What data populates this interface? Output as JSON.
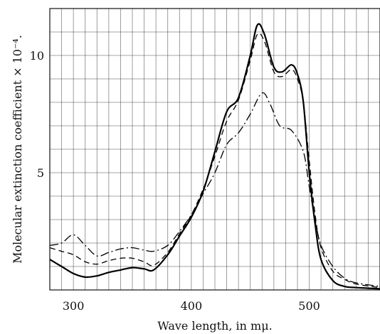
{
  "chart_data": {
    "type": "line",
    "xlabel": "Wave length, in mμ.",
    "ylabel": "Molecular extinction coefficient × 10⁻⁴.",
    "xlim": [
      280,
      560
    ],
    "ylim": [
      0,
      12
    ],
    "grid": true,
    "x_ticks": [
      {
        "value": 300,
        "label": "300"
      },
      {
        "value": 400,
        "label": "400"
      },
      {
        "value": 500,
        "label": "500"
      }
    ],
    "y_ticks": [
      {
        "value": 5,
        "label": "5"
      },
      {
        "value": 10,
        "label": "10"
      }
    ],
    "x_grid": [
      290,
      300,
      310,
      320,
      330,
      340,
      350,
      360,
      370,
      380,
      390,
      400,
      410,
      420,
      430,
      440,
      450,
      460,
      470,
      480,
      490,
      500,
      510,
      520,
      530,
      540,
      550
    ],
    "y_grid": [
      1,
      2,
      3,
      4,
      5,
      6,
      7,
      8,
      9,
      10,
      11
    ],
    "series": [
      {
        "style": "solid",
        "color": "#000000",
        "points": [
          [
            280,
            1.3
          ],
          [
            290,
            1.0
          ],
          [
            300,
            0.7
          ],
          [
            310,
            0.55
          ],
          [
            320,
            0.6
          ],
          [
            330,
            0.75
          ],
          [
            340,
            0.85
          ],
          [
            350,
            0.95
          ],
          [
            360,
            0.9
          ],
          [
            368,
            0.85
          ],
          [
            380,
            1.5
          ],
          [
            390,
            2.3
          ],
          [
            400,
            3.1
          ],
          [
            410,
            4.2
          ],
          [
            420,
            5.9
          ],
          [
            430,
            7.6
          ],
          [
            440,
            8.2
          ],
          [
            450,
            10.0
          ],
          [
            456,
            11.3
          ],
          [
            462,
            10.9
          ],
          [
            470,
            9.5
          ],
          [
            477,
            9.3
          ],
          [
            485,
            9.6
          ],
          [
            490,
            9.2
          ],
          [
            495,
            8.0
          ],
          [
            500,
            5.0
          ],
          [
            505,
            2.8
          ],
          [
            510,
            1.3
          ],
          [
            520,
            0.4
          ],
          [
            530,
            0.15
          ],
          [
            540,
            0.1
          ],
          [
            560,
            0.05
          ]
        ]
      },
      {
        "style": "dashed",
        "color": "#000000",
        "points": [
          [
            280,
            1.8
          ],
          [
            290,
            1.65
          ],
          [
            300,
            1.5
          ],
          [
            310,
            1.2
          ],
          [
            320,
            1.1
          ],
          [
            330,
            1.25
          ],
          [
            340,
            1.35
          ],
          [
            350,
            1.35
          ],
          [
            360,
            1.2
          ],
          [
            368,
            1.05
          ],
          [
            380,
            1.6
          ],
          [
            390,
            2.4
          ],
          [
            400,
            3.2
          ],
          [
            410,
            4.3
          ],
          [
            420,
            5.7
          ],
          [
            430,
            7.2
          ],
          [
            440,
            8.1
          ],
          [
            450,
            9.8
          ],
          [
            456,
            10.9
          ],
          [
            462,
            10.6
          ],
          [
            470,
            9.3
          ],
          [
            477,
            9.1
          ],
          [
            485,
            9.4
          ],
          [
            490,
            9.0
          ],
          [
            495,
            8.0
          ],
          [
            500,
            5.5
          ],
          [
            505,
            3.2
          ],
          [
            510,
            1.8
          ],
          [
            520,
            0.8
          ],
          [
            530,
            0.45
          ],
          [
            540,
            0.25
          ],
          [
            560,
            0.1
          ]
        ]
      },
      {
        "style": "dash-dot",
        "color": "#000000",
        "points": [
          [
            280,
            1.9
          ],
          [
            290,
            2.0
          ],
          [
            300,
            2.35
          ],
          [
            310,
            1.9
          ],
          [
            320,
            1.45
          ],
          [
            330,
            1.6
          ],
          [
            340,
            1.75
          ],
          [
            350,
            1.8
          ],
          [
            360,
            1.7
          ],
          [
            368,
            1.65
          ],
          [
            380,
            1.9
          ],
          [
            390,
            2.5
          ],
          [
            400,
            3.2
          ],
          [
            410,
            4.1
          ],
          [
            420,
            5.0
          ],
          [
            430,
            6.2
          ],
          [
            440,
            6.7
          ],
          [
            450,
            7.5
          ],
          [
            460,
            8.4
          ],
          [
            467,
            7.9
          ],
          [
            475,
            7.0
          ],
          [
            485,
            6.8
          ],
          [
            495,
            5.9
          ],
          [
            500,
            4.4
          ],
          [
            505,
            3.0
          ],
          [
            510,
            1.9
          ],
          [
            520,
            1.0
          ],
          [
            530,
            0.5
          ],
          [
            540,
            0.3
          ],
          [
            560,
            0.15
          ]
        ]
      }
    ]
  }
}
